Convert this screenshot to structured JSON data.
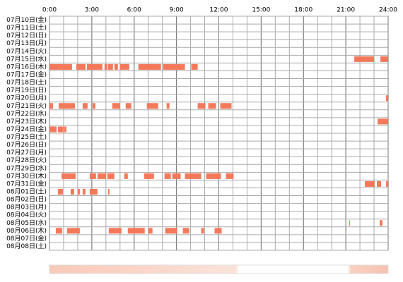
{
  "chart_data": {
    "type": "timeline",
    "categories": [
      "07月10日(金)",
      "07月11日(土)",
      "07月12日(日)",
      "07月13日(月)",
      "07月14日(火)",
      "07月15日(水)",
      "07月16日(木)",
      "07月17日(金)",
      "07月18日(土)",
      "07月19日(日)",
      "07月20日(月)",
      "07月21日(火)",
      "07月22日(水)",
      "07月23日(木)",
      "07月24日(金)",
      "07月25日(土)",
      "07月26日(日)",
      "07月27日(月)",
      "07月28日(火)",
      "07月29日(水)",
      "07月30日(木)",
      "07月31日(金)",
      "08月01日(土)",
      "08月02日(日)",
      "08月03日(月)",
      "08月04日(火)",
      "08月05日(水)",
      "08月06日(木)",
      "08月07日(金)",
      "08月08日(土)"
    ],
    "intervals": [
      [],
      [],
      [],
      [],
      [],
      [
        [
          21.6,
          23.0
        ],
        [
          23.45,
          24
        ]
      ],
      [
        [
          0,
          1.6
        ],
        [
          1.9,
          2.55
        ],
        [
          2.65,
          3.75
        ],
        [
          3.9,
          4.1
        ],
        [
          4.15,
          4.5
        ],
        [
          4.6,
          4.85
        ],
        [
          5.0,
          5.65
        ],
        [
          6.3,
          7.9
        ],
        [
          8.05,
          9.6
        ],
        [
          10.05,
          10.5
        ]
      ],
      [],
      [],
      [],
      [
        [
          23.85,
          24
        ]
      ],
      [
        [
          0,
          0.25
        ],
        [
          0.65,
          1.8
        ],
        [
          2.35,
          2.7
        ],
        [
          3.05,
          3.25
        ],
        [
          4.45,
          5.0
        ],
        [
          5.4,
          5.8
        ],
        [
          6.9,
          7.7
        ],
        [
          8.3,
          8.5
        ],
        [
          10.5,
          11.05
        ],
        [
          11.25,
          11.8
        ],
        [
          12.1,
          12.9
        ]
      ],
      [],
      [
        [
          23.25,
          24
        ]
      ],
      [
        [
          0,
          0.5
        ],
        [
          0.6,
          1.0
        ],
        [
          1.05,
          1.2
        ]
      ],
      [],
      [],
      [],
      [],
      [],
      [
        [
          0.85,
          1.85
        ],
        [
          2.85,
          3.3
        ],
        [
          3.4,
          4.0
        ],
        [
          4.1,
          4.6
        ],
        [
          5.3,
          5.55
        ],
        [
          6.7,
          7.4
        ],
        [
          8.15,
          8.6
        ],
        [
          8.7,
          9.3
        ],
        [
          9.6,
          10.75
        ],
        [
          11.1,
          12.15
        ],
        [
          12.5,
          13.05
        ]
      ],
      [
        [
          22.35,
          23.05
        ],
        [
          23.2,
          23.5
        ],
        [
          23.85,
          24
        ]
      ],
      [
        [
          0.6,
          0.95
        ],
        [
          1.5,
          1.75
        ],
        [
          2.0,
          2.15
        ],
        [
          2.35,
          2.55
        ],
        [
          2.85,
          3.4
        ],
        [
          4.15,
          4.25
        ]
      ],
      [],
      [],
      [],
      [
        [
          21.25,
          21.3
        ],
        [
          23.4,
          23.6
        ]
      ],
      [
        [
          0.45,
          0.9
        ],
        [
          1.25,
          2.15
        ],
        [
          4.2,
          5.1
        ],
        [
          5.55,
          6.75
        ],
        [
          7.0,
          7.3
        ],
        [
          8.2,
          9.05
        ],
        [
          9.45,
          9.9
        ],
        [
          10.75,
          10.95
        ],
        [
          11.7,
          12.2
        ]
      ],
      [],
      []
    ],
    "color": "#f4795b",
    "xlim": [
      0,
      24
    ],
    "xticks": [
      {
        "value": 0,
        "label": "0:00"
      },
      {
        "value": 3,
        "label": "3:00"
      },
      {
        "value": 6,
        "label": "6:00"
      },
      {
        "value": 9,
        "label": "9:00"
      },
      {
        "value": 12,
        "label": "12:00"
      },
      {
        "value": 15,
        "label": "15:00"
      },
      {
        "value": 18,
        "label": "18:00"
      },
      {
        "value": 21,
        "label": "21:00"
      },
      {
        "value": 24,
        "label": "24:00"
      }
    ],
    "grid": true
  }
}
